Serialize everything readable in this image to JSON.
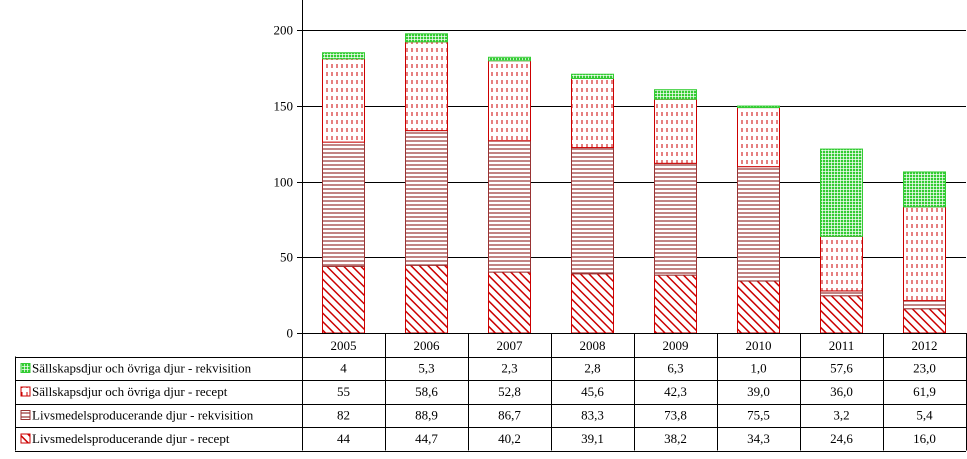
{
  "chart_data": {
    "type": "bar",
    "stacked": true,
    "title": "",
    "xlabel": "",
    "ylabel": "",
    "ylim": [
      0,
      200
    ],
    "yticks": [
      0,
      50,
      100,
      150,
      200
    ],
    "grid": true,
    "legend": "data-table-left",
    "categories": [
      "2005",
      "2006",
      "2007",
      "2008",
      "2009",
      "2010",
      "2011",
      "2012"
    ],
    "series": [
      {
        "name": "Livsmedelsproducerande djur - recept",
        "values": [
          44,
          44.7,
          40.2,
          39.1,
          38.2,
          34.3,
          24.6,
          16.0
        ],
        "labels": [
          "44",
          "44,7",
          "40,2",
          "39,1",
          "38,2",
          "34,3",
          "24,6",
          "16,0"
        ],
        "color": "#cc0000",
        "pattern": "diagonal-hatch"
      },
      {
        "name": "Livsmedelsproducerande djur - rekvisition",
        "values": [
          82,
          88.9,
          86.7,
          83.3,
          73.8,
          75.5,
          3.2,
          5.4
        ],
        "labels": [
          "82",
          "88,9",
          "86,7",
          "83,3",
          "73,8",
          "75,5",
          "3,2",
          "5,4"
        ],
        "color": "#993333",
        "pattern": "horizontal-lines"
      },
      {
        "name": "Sällskapsdjur och övriga djur - recept",
        "values": [
          55,
          58.6,
          52.8,
          45.6,
          42.3,
          39.0,
          36.0,
          61.9
        ],
        "labels": [
          "55",
          "58,6",
          "52,8",
          "45,6",
          "42,3",
          "39,0",
          "36,0",
          "61,9"
        ],
        "color": "#cc0000",
        "pattern": "dotted"
      },
      {
        "name": "Sällskapsdjur och övriga djur - rekvisition",
        "values": [
          4,
          5.3,
          2.3,
          2.8,
          6.3,
          1.0,
          57.6,
          23.0
        ],
        "labels": [
          "4",
          "5,3",
          "2,3",
          "2,8",
          "6,3",
          "1,0",
          "57,6",
          "23,0"
        ],
        "color": "#33cc33",
        "pattern": "grid"
      }
    ]
  }
}
